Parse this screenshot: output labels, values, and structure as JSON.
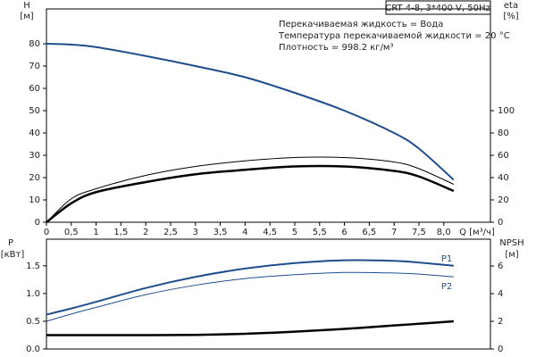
{
  "chart_data": [
    {
      "type": "line",
      "title": "CRT 4-8, 3*400 V, 50Hz",
      "annotations": [
        "Перекачиваемая жидкость = Вода",
        "Температура перекачиваемой жидкости = 20 °C",
        "Плотность = 998.2 кг/м³"
      ],
      "y_label": "H",
      "y_unit": "[м]",
      "y2_label": "eta",
      "y2_unit": "[%]",
      "x_label": "Q [м³/ч]",
      "x": [
        0,
        0.5,
        1,
        2,
        3,
        4,
        5,
        6,
        7,
        7.5,
        8.2
      ],
      "xlim": [
        0,
        8.94
      ],
      "xticks": [
        0,
        {
          "value": 0.5,
          "label": "0,5"
        },
        1,
        {
          "value": 1.5,
          "label": "1,5"
        },
        2,
        {
          "value": 2.5,
          "label": "2,5"
        },
        3,
        {
          "value": 3.5,
          "label": "3,5"
        },
        4,
        {
          "value": 4.5,
          "label": "4,5"
        },
        5,
        {
          "value": 5.5,
          "label": "5,5"
        },
        6,
        {
          "value": 6.5,
          "label": "6,5"
        },
        7,
        {
          "value": 7.5,
          "label": "7,5"
        },
        {
          "value": 8,
          "label": "8,0"
        }
      ],
      "ylim": [
        0,
        95.6
      ],
      "yticks": [
        0,
        10,
        20,
        30,
        40,
        50,
        60,
        70,
        80
      ],
      "y2lim": [
        0,
        191.2
      ],
      "y2ticks": [
        0,
        20,
        40,
        60,
        80,
        100
      ],
      "series": [
        {
          "color": "#1f4e8c",
          "width": 2,
          "values": [
            80,
            79.6,
            78.5,
            74.5,
            70,
            65,
            58,
            50,
            40,
            33,
            19
          ]
        },
        {
          "color": "#000000",
          "width": 1,
          "axis": "y2",
          "values": [
            0,
            21,
            30,
            42,
            50,
            55,
            58,
            58,
            54,
            48,
            34
          ]
        },
        {
          "color": "#000000",
          "width": 2.5,
          "axis": "y2",
          "values": [
            0,
            17,
            27,
            36,
            43,
            47,
            50,
            50,
            46,
            41,
            28
          ]
        }
      ]
    },
    {
      "type": "line",
      "y_label": "P",
      "y_unit": "[кВт]",
      "y2_label": "NPSH",
      "y2_unit": "[м]",
      "x": [
        0,
        0.5,
        1,
        2,
        3,
        4,
        5,
        6,
        7,
        7.5,
        8.2
      ],
      "xlim": [
        0,
        8.94
      ],
      "ylim": [
        0,
        1.98
      ],
      "yticks": [
        {
          "value": 0,
          "label": "0.0"
        },
        {
          "value": 0.5,
          "label": "0.5"
        },
        {
          "value": 1,
          "label": "1.0"
        },
        {
          "value": 1.5,
          "label": "1.5"
        }
      ],
      "y2lim": [
        0,
        7.94
      ],
      "y2ticks": [
        0,
        2,
        4,
        6
      ],
      "series": [
        {
          "name": "P1",
          "color": "#1f4e8c",
          "width": 2,
          "values": [
            0.62,
            0.73,
            0.85,
            1.1,
            1.3,
            1.45,
            1.55,
            1.6,
            1.59,
            1.56,
            1.5
          ]
        },
        {
          "name": "P2",
          "color": "#1f4e8c",
          "width": 1,
          "values": [
            0.5,
            0.63,
            0.75,
            0.98,
            1.15,
            1.27,
            1.34,
            1.38,
            1.37,
            1.35,
            1.3
          ]
        },
        {
          "color": "#000000",
          "width": 2.5,
          "axis": "y2",
          "values": [
            1,
            1,
            1,
            1,
            1.02,
            1.1,
            1.25,
            1.45,
            1.7,
            1.82,
            2
          ]
        }
      ]
    }
  ]
}
